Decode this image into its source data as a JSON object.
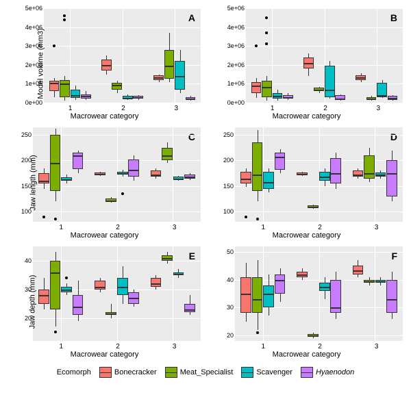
{
  "colors": {
    "bg": "#ebebeb",
    "grid": "#ffffff",
    "bonecracker": "#f8766d",
    "meat": "#7cae00",
    "scavenger": "#00bfc4",
    "hyaenodon": "#c77cff"
  },
  "legend": {
    "title": "Ecomorph",
    "items": [
      {
        "label": "Bonecracker",
        "colorKey": "bonecracker"
      },
      {
        "label": "Meat_Specialist",
        "colorKey": "meat"
      },
      {
        "label": "Scavenger",
        "colorKey": "scavenger"
      },
      {
        "label": "Hyaenodon",
        "colorKey": "hyaenodon",
        "italic": true
      }
    ]
  },
  "xlabel": "Macrowear category",
  "xcats": [
    "1",
    "2",
    "3"
  ],
  "panels": [
    {
      "id": "A",
      "ylabel": "Model volume (mm3)",
      "ylim": [
        0,
        5000000
      ],
      "yticks": [
        {
          "v": 0,
          "l": "0e+00"
        },
        {
          "v": 1000000,
          "l": "1e+06"
        },
        {
          "v": 2000000,
          "l": "2e+06"
        },
        {
          "v": 3000000,
          "l": "3e+06"
        },
        {
          "v": 4000000,
          "l": "4e+06"
        },
        {
          "v": 5000000,
          "l": "5e+06"
        }
      ],
      "groups": [
        {
          "cat": 0,
          "series": 0,
          "q1": 600000,
          "med": 1050000,
          "q3": 1150000,
          "lo": 300000,
          "hi": 1300000,
          "out": [
            3000000
          ]
        },
        {
          "cat": 0,
          "series": 1,
          "q1": 300000,
          "med": 1000000,
          "q3": 1200000,
          "lo": 100000,
          "hi": 1400000,
          "out": [
            4400000,
            4600000
          ]
        },
        {
          "cat": 0,
          "series": 2,
          "q1": 250000,
          "med": 400000,
          "q3": 700000,
          "lo": 150000,
          "hi": 900000,
          "out": []
        },
        {
          "cat": 0,
          "series": 3,
          "q1": 200000,
          "med": 350000,
          "q3": 450000,
          "lo": 150000,
          "hi": 600000,
          "out": []
        },
        {
          "cat": 1,
          "series": 0,
          "q1": 1700000,
          "med": 2000000,
          "q3": 2300000,
          "lo": 1500000,
          "hi": 2500000,
          "out": []
        },
        {
          "cat": 1,
          "series": 1,
          "q1": 700000,
          "med": 950000,
          "q3": 1050000,
          "lo": 500000,
          "hi": 1150000,
          "out": []
        },
        {
          "cat": 1,
          "series": 2,
          "q1": 200000,
          "med": 250000,
          "q3": 350000,
          "lo": 150000,
          "hi": 450000,
          "out": []
        },
        {
          "cat": 1,
          "series": 3,
          "q1": 200000,
          "med": 280000,
          "q3": 350000,
          "lo": 150000,
          "hi": 400000,
          "out": []
        },
        {
          "cat": 2,
          "series": 0,
          "q1": 1200000,
          "med": 1350000,
          "q3": 1450000,
          "lo": 1100000,
          "hi": 1500000,
          "out": []
        },
        {
          "cat": 2,
          "series": 1,
          "q1": 1250000,
          "med": 1950000,
          "q3": 2800000,
          "lo": 1100000,
          "hi": 3700000,
          "out": []
        },
        {
          "cat": 2,
          "series": 2,
          "q1": 700000,
          "med": 1400000,
          "q3": 2200000,
          "lo": 500000,
          "hi": 2800000,
          "out": []
        },
        {
          "cat": 2,
          "series": 3,
          "q1": 150000,
          "med": 200000,
          "q3": 300000,
          "lo": 100000,
          "hi": 350000,
          "out": []
        }
      ]
    },
    {
      "id": "B",
      "ylabel": "",
      "ylim": [
        0,
        5000000
      ],
      "yticks": [
        {
          "v": 0,
          "l": "0e+00"
        },
        {
          "v": 1000000,
          "l": "1e+06"
        },
        {
          "v": 2000000,
          "l": "2e+06"
        },
        {
          "v": 3000000,
          "l": "3e+06"
        },
        {
          "v": 4000000,
          "l": "4e+06"
        },
        {
          "v": 5000000,
          "l": "5e+06"
        }
      ],
      "groups": [
        {
          "cat": 0,
          "series": 0,
          "q1": 500000,
          "med": 900000,
          "q3": 1100000,
          "lo": 250000,
          "hi": 1300000,
          "out": [
            3000000
          ]
        },
        {
          "cat": 0,
          "series": 1,
          "q1": 300000,
          "med": 850000,
          "q3": 1150000,
          "lo": 100000,
          "hi": 1400000,
          "out": [
            3100000,
            3700000,
            4500000
          ]
        },
        {
          "cat": 0,
          "series": 2,
          "q1": 200000,
          "med": 350000,
          "q3": 500000,
          "lo": 100000,
          "hi": 700000,
          "out": []
        },
        {
          "cat": 0,
          "series": 3,
          "q1": 200000,
          "med": 300000,
          "q3": 400000,
          "lo": 150000,
          "hi": 500000,
          "out": []
        },
        {
          "cat": 1,
          "series": 0,
          "q1": 1800000,
          "med": 2100000,
          "q3": 2400000,
          "lo": 1400000,
          "hi": 2600000,
          "out": []
        },
        {
          "cat": 1,
          "series": 1,
          "q1": 600000,
          "med": 700000,
          "q3": 780000,
          "lo": 500000,
          "hi": 850000,
          "out": []
        },
        {
          "cat": 1,
          "series": 2,
          "q1": 300000,
          "med": 700000,
          "q3": 1950000,
          "lo": 200000,
          "hi": 2200000,
          "out": []
        },
        {
          "cat": 1,
          "series": 3,
          "q1": 150000,
          "med": 200000,
          "q3": 400000,
          "lo": 100000,
          "hi": 450000,
          "out": []
        },
        {
          "cat": 2,
          "series": 0,
          "q1": 1200000,
          "med": 1350000,
          "q3": 1450000,
          "lo": 1100000,
          "hi": 1550000,
          "out": []
        },
        {
          "cat": 2,
          "series": 1,
          "q1": 150000,
          "med": 200000,
          "q3": 280000,
          "lo": 100000,
          "hi": 350000,
          "out": []
        },
        {
          "cat": 2,
          "series": 2,
          "q1": 300000,
          "med": 400000,
          "q3": 1050000,
          "lo": 250000,
          "hi": 1200000,
          "out": []
        },
        {
          "cat": 2,
          "series": 3,
          "q1": 150000,
          "med": 250000,
          "q3": 350000,
          "lo": 100000,
          "hi": 400000,
          "out": []
        }
      ]
    },
    {
      "id": "C",
      "ylabel": "Jaw length (mm)",
      "ylim": [
        80,
        265
      ],
      "yticks": [
        {
          "v": 100,
          "l": "100"
        },
        {
          "v": 150,
          "l": "150"
        },
        {
          "v": 200,
          "l": "200"
        },
        {
          "v": 250,
          "l": "250"
        }
      ],
      "groups": [
        {
          "cat": 0,
          "series": 0,
          "q1": 155,
          "med": 160,
          "q3": 175,
          "lo": 145,
          "hi": 185,
          "out": [
            90
          ]
        },
        {
          "cat": 0,
          "series": 1,
          "q1": 140,
          "med": 195,
          "q3": 250,
          "lo": 120,
          "hi": 262,
          "out": [
            85
          ]
        },
        {
          "cat": 0,
          "series": 2,
          "q1": 160,
          "med": 163,
          "q3": 167,
          "lo": 155,
          "hi": 172,
          "out": []
        },
        {
          "cat": 0,
          "series": 3,
          "q1": 183,
          "med": 210,
          "q3": 215,
          "lo": 175,
          "hi": 220,
          "out": []
        },
        {
          "cat": 1,
          "series": 0,
          "q1": 172,
          "med": 174,
          "q3": 176,
          "lo": 170,
          "hi": 178,
          "out": []
        },
        {
          "cat": 1,
          "series": 1,
          "q1": 120,
          "med": 122,
          "q3": 125,
          "lo": 118,
          "hi": 128,
          "out": []
        },
        {
          "cat": 1,
          "series": 2,
          "q1": 172,
          "med": 175,
          "q3": 178,
          "lo": 168,
          "hi": 182,
          "out": [
            135
          ]
        },
        {
          "cat": 1,
          "series": 3,
          "q1": 168,
          "med": 182,
          "q3": 202,
          "lo": 160,
          "hi": 210,
          "out": []
        },
        {
          "cat": 2,
          "series": 0,
          "q1": 168,
          "med": 172,
          "q3": 180,
          "lo": 165,
          "hi": 185,
          "out": []
        },
        {
          "cat": 2,
          "series": 1,
          "q1": 200,
          "med": 210,
          "q3": 225,
          "lo": 195,
          "hi": 235,
          "out": []
        },
        {
          "cat": 2,
          "series": 2,
          "q1": 162,
          "med": 165,
          "q3": 168,
          "lo": 160,
          "hi": 170,
          "out": []
        },
        {
          "cat": 2,
          "series": 3,
          "q1": 165,
          "med": 168,
          "q3": 172,
          "lo": 162,
          "hi": 175,
          "out": []
        }
      ]
    },
    {
      "id": "D",
      "ylabel": "",
      "ylim": [
        80,
        265
      ],
      "yticks": [
        {
          "v": 100,
          "l": "100"
        },
        {
          "v": 150,
          "l": "150"
        },
        {
          "v": 200,
          "l": "200"
        },
        {
          "v": 250,
          "l": "250"
        }
      ],
      "groups": [
        {
          "cat": 0,
          "series": 0,
          "q1": 155,
          "med": 165,
          "q3": 178,
          "lo": 148,
          "hi": 185,
          "out": [
            90
          ]
        },
        {
          "cat": 0,
          "series": 1,
          "q1": 140,
          "med": 172,
          "q3": 235,
          "lo": 120,
          "hi": 260,
          "out": [
            85
          ]
        },
        {
          "cat": 0,
          "series": 2,
          "q1": 145,
          "med": 158,
          "q3": 178,
          "lo": 138,
          "hi": 185,
          "out": []
        },
        {
          "cat": 0,
          "series": 3,
          "q1": 182,
          "med": 208,
          "q3": 215,
          "lo": 175,
          "hi": 222,
          "out": []
        },
        {
          "cat": 1,
          "series": 0,
          "q1": 172,
          "med": 174,
          "q3": 176,
          "lo": 170,
          "hi": 178,
          "out": []
        },
        {
          "cat": 1,
          "series": 1,
          "q1": 108,
          "med": 110,
          "q3": 112,
          "lo": 106,
          "hi": 114,
          "out": []
        },
        {
          "cat": 1,
          "series": 2,
          "q1": 160,
          "med": 168,
          "q3": 178,
          "lo": 150,
          "hi": 185,
          "out": []
        },
        {
          "cat": 1,
          "series": 3,
          "q1": 155,
          "med": 175,
          "q3": 205,
          "lo": 145,
          "hi": 215,
          "out": []
        },
        {
          "cat": 2,
          "series": 0,
          "q1": 168,
          "med": 172,
          "q3": 180,
          "lo": 165,
          "hi": 185,
          "out": []
        },
        {
          "cat": 2,
          "series": 1,
          "q1": 165,
          "med": 175,
          "q3": 210,
          "lo": 158,
          "hi": 225,
          "out": []
        },
        {
          "cat": 2,
          "series": 2,
          "q1": 168,
          "med": 172,
          "q3": 176,
          "lo": 165,
          "hi": 180,
          "out": []
        },
        {
          "cat": 2,
          "series": 3,
          "q1": 130,
          "med": 175,
          "q3": 200,
          "lo": 120,
          "hi": 220,
          "out": []
        }
      ]
    },
    {
      "id": "E",
      "ylabel": "Jaw depth (mm)",
      "ylim": [
        12,
        45
      ],
      "yticks": [
        {
          "v": 20,
          "l": "20"
        },
        {
          "v": 30,
          "l": "30"
        },
        {
          "v": 40,
          "l": "40"
        }
      ],
      "groups": [
        {
          "cat": 0,
          "series": 0,
          "q1": 25,
          "med": 28,
          "q3": 30,
          "lo": 23,
          "hi": 34,
          "out": []
        },
        {
          "cat": 0,
          "series": 1,
          "q1": 23,
          "med": 36,
          "q3": 40,
          "lo": 17,
          "hi": 43,
          "out": [
            15
          ]
        },
        {
          "cat": 0,
          "series": 2,
          "q1": 29,
          "med": 30,
          "q3": 31,
          "lo": 28,
          "hi": 32,
          "out": [
            34
          ]
        },
        {
          "cat": 0,
          "series": 3,
          "q1": 21,
          "med": 24,
          "q3": 28,
          "lo": 19,
          "hi": 33,
          "out": []
        },
        {
          "cat": 1,
          "series": 0,
          "q1": 30,
          "med": 31,
          "q3": 33,
          "lo": 29,
          "hi": 34,
          "out": []
        },
        {
          "cat": 1,
          "series": 1,
          "q1": 21,
          "med": 21.5,
          "q3": 22,
          "lo": 20,
          "hi": 25,
          "out": []
        },
        {
          "cat": 1,
          "series": 2,
          "q1": 28,
          "med": 31,
          "q3": 34,
          "lo": 25,
          "hi": 38,
          "out": []
        },
        {
          "cat": 1,
          "series": 3,
          "q1": 25,
          "med": 27,
          "q3": 29,
          "lo": 24,
          "hi": 30,
          "out": []
        },
        {
          "cat": 2,
          "series": 0,
          "q1": 31,
          "med": 32,
          "q3": 34,
          "lo": 30,
          "hi": 35,
          "out": []
        },
        {
          "cat": 2,
          "series": 1,
          "q1": 40,
          "med": 41,
          "q3": 42,
          "lo": 39,
          "hi": 43,
          "out": []
        },
        {
          "cat": 2,
          "series": 2,
          "q1": 35,
          "med": 35.5,
          "q3": 36,
          "lo": 34,
          "hi": 37,
          "out": []
        },
        {
          "cat": 2,
          "series": 3,
          "q1": 22,
          "med": 23,
          "q3": 25,
          "lo": 21,
          "hi": 28,
          "out": []
        }
      ]
    },
    {
      "id": "F",
      "ylabel": "",
      "ylim": [
        18,
        52
      ],
      "yticks": [
        {
          "v": 20,
          "l": "20"
        },
        {
          "v": 30,
          "l": "30"
        },
        {
          "v": 40,
          "l": "40"
        },
        {
          "v": 50,
          "l": "50"
        }
      ],
      "groups": [
        {
          "cat": 0,
          "series": 0,
          "q1": 28,
          "med": 35,
          "q3": 41,
          "lo": 25,
          "hi": 46,
          "out": []
        },
        {
          "cat": 0,
          "series": 1,
          "q1": 28,
          "med": 33,
          "q3": 41,
          "lo": 22,
          "hi": 47,
          "out": [
            21
          ]
        },
        {
          "cat": 0,
          "series": 2,
          "q1": 30,
          "med": 35,
          "q3": 38,
          "lo": 27,
          "hi": 42,
          "out": []
        },
        {
          "cat": 0,
          "series": 3,
          "q1": 35,
          "med": 40,
          "q3": 42,
          "lo": 32,
          "hi": 44,
          "out": []
        },
        {
          "cat": 1,
          "series": 0,
          "q1": 41,
          "med": 42,
          "q3": 43,
          "lo": 40,
          "hi": 44,
          "out": []
        },
        {
          "cat": 1,
          "series": 1,
          "q1": 19.5,
          "med": 20,
          "q3": 20.5,
          "lo": 19,
          "hi": 21,
          "out": []
        },
        {
          "cat": 1,
          "series": 2,
          "q1": 36,
          "med": 37.5,
          "q3": 39,
          "lo": 33,
          "hi": 41,
          "out": []
        },
        {
          "cat": 1,
          "series": 3,
          "q1": 28,
          "med": 30,
          "q3": 40,
          "lo": 26,
          "hi": 43,
          "out": []
        },
        {
          "cat": 2,
          "series": 0,
          "q1": 42,
          "med": 43.5,
          "q3": 45,
          "lo": 41,
          "hi": 47,
          "out": []
        },
        {
          "cat": 2,
          "series": 1,
          "q1": 39,
          "med": 39.5,
          "q3": 40,
          "lo": 38,
          "hi": 41,
          "out": []
        },
        {
          "cat": 2,
          "series": 2,
          "q1": 39,
          "med": 39.5,
          "q3": 40,
          "lo": 38,
          "hi": 41,
          "out": []
        },
        {
          "cat": 2,
          "series": 3,
          "q1": 28,
          "med": 33,
          "q3": 40,
          "lo": 26,
          "hi": 43,
          "out": []
        }
      ]
    }
  ]
}
